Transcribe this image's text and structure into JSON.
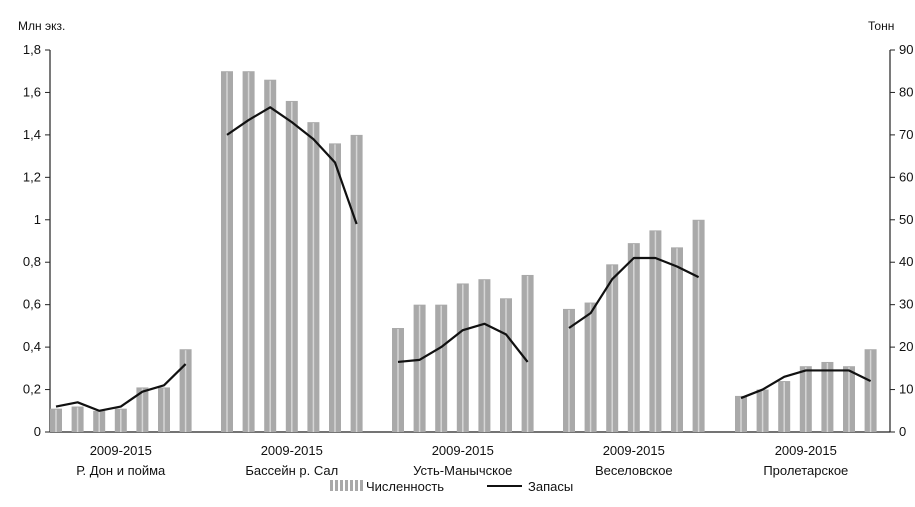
{
  "chart_data": {
    "type": "bar",
    "y_left": {
      "label": "Млн экз.",
      "ylim": [
        0,
        1.8
      ],
      "ticks": [
        "0",
        "0,2",
        "0,4",
        "0,6",
        "0,8",
        "1",
        "1,2",
        "1,4",
        "1,6",
        "1,8"
      ]
    },
    "y_right": {
      "label": "Тонн",
      "ylim": [
        0,
        90
      ],
      "ticks": [
        "0",
        "10",
        "20",
        "30",
        "40",
        "50",
        "60",
        "70",
        "80",
        "90"
      ]
    },
    "groups": [
      {
        "years": "2009-2015",
        "name": "Р. Дон и пойма",
        "bars": [
          0.11,
          0.12,
          0.1,
          0.11,
          0.21,
          0.21,
          0.39
        ],
        "line": [
          6,
          7,
          5,
          6,
          9.5,
          11,
          16
        ]
      },
      {
        "years": "2009-2015",
        "name": "Бассейн р. Сал",
        "bars": [
          1.7,
          1.7,
          1.66,
          1.56,
          1.46,
          1.36,
          1.4
        ],
        "line": [
          70,
          73.5,
          76.5,
          73,
          69,
          63.5,
          49
        ]
      },
      {
        "years": "2009-2015",
        "name": "Усть-Манычское",
        "bars": [
          0.49,
          0.6,
          0.6,
          0.7,
          0.72,
          0.63,
          0.74
        ],
        "line": [
          16.5,
          17,
          20,
          24,
          25.5,
          23,
          16.5
        ]
      },
      {
        "years": "2009-2015",
        "name": "Веселовское",
        "bars": [
          0.58,
          0.61,
          0.79,
          0.89,
          0.95,
          0.87,
          1.0
        ],
        "line": [
          24.5,
          28,
          36,
          41,
          41,
          39,
          36.5
        ]
      },
      {
        "years": "2009-2015",
        "name": "Пролетарское",
        "bars": [
          0.17,
          0.2,
          0.24,
          0.31,
          0.33,
          0.31,
          0.39
        ],
        "line": [
          8,
          10,
          13,
          14.5,
          14.5,
          14.5,
          12
        ]
      }
    ],
    "legend": [
      {
        "label": "Численность",
        "kind": "bar"
      },
      {
        "label": "Запасы",
        "kind": "line"
      }
    ],
    "legend_position": "bottom",
    "colors": {
      "bar": "#a9a9a9",
      "line": "#111111",
      "axis": "#222222"
    }
  }
}
